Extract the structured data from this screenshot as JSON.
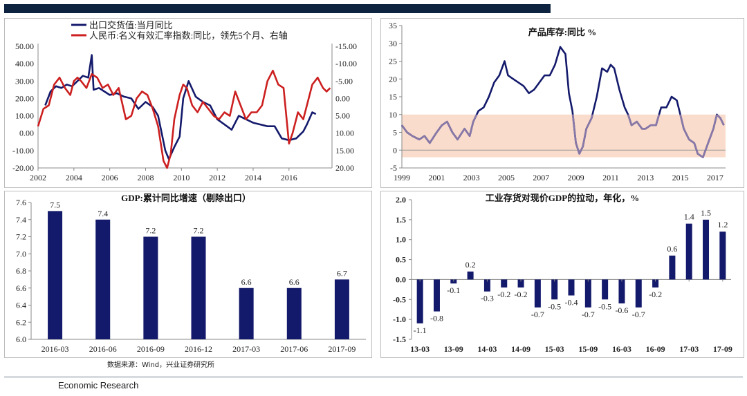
{
  "footer": {
    "source": "数据来源：Wind，兴业证券研究所",
    "brand": "Economic Research"
  },
  "colors": {
    "navy": "#141a6b",
    "red": "#cc1f1f",
    "band": "#f9dccb",
    "purple": "#8878a8"
  },
  "chart_data": [
    {
      "type": "line",
      "legend": [
        "出口交货值:当月同比",
        "人民币:名义有效汇率指数:同比，领先5个月、右轴"
      ],
      "x_ticks": [
        "2002",
        "2004",
        "2006",
        "2008",
        "2010",
        "2012",
        "2014",
        "2016"
      ],
      "y_left_ticks": [
        "50.00",
        "40.00",
        "30.00",
        "20.00",
        "10.00",
        "0.00",
        "-10.00",
        "-20.00"
      ],
      "y_left_lim": [
        -20,
        50
      ],
      "y_right_ticks": [
        "-15.00",
        "-10.00",
        "-5.00",
        "0.00",
        "5.00",
        "10.00",
        "15.00",
        "20.00"
      ],
      "y_right_lim": [
        -15,
        20
      ],
      "x_lim": [
        2002,
        2018.4
      ],
      "series": [
        {
          "name": "出口交货值:当月同比",
          "axis": "left",
          "color": "#141a6b",
          "x": [
            2002.4,
            2002.7,
            2003.0,
            2003.3,
            2003.6,
            2003.9,
            2004.2,
            2004.5,
            2004.8,
            2005.0,
            2005.1,
            2005.4,
            2005.7,
            2006.0,
            2006.4,
            2006.8,
            2007.2,
            2007.6,
            2008.0,
            2008.4,
            2008.7,
            2008.9,
            2009.1,
            2009.3,
            2009.6,
            2009.9,
            2010.1,
            2010.4,
            2010.8,
            2011.2,
            2011.6,
            2012.0,
            2012.4,
            2012.8,
            2013.2,
            2013.6,
            2014.0,
            2014.4,
            2014.8,
            2015.2,
            2015.6,
            2016.0,
            2016.4,
            2016.8,
            2017.0,
            2017.3,
            2017.5
          ],
          "y": [
            16,
            24,
            27,
            26,
            28,
            27,
            30,
            33,
            32,
            45,
            25,
            26,
            24,
            22,
            23,
            21,
            20,
            14,
            18,
            15,
            10,
            0,
            -10,
            -15,
            -8,
            -2,
            20,
            30,
            21,
            18,
            16,
            8,
            5,
            2,
            10,
            8,
            6,
            5,
            4,
            4,
            -3,
            -4,
            -3,
            1,
            5,
            12,
            11
          ]
        },
        {
          "name": "人民币:名义有效汇率指数:同比，领先5个月、右轴",
          "axis": "right",
          "color": "#cc1f1f",
          "x": [
            2002.0,
            2002.3,
            2002.6,
            2002.9,
            2003.2,
            2003.5,
            2003.8,
            2004.0,
            2004.2,
            2004.4,
            2004.7,
            2005.0,
            2005.3,
            2005.6,
            2005.9,
            2006.2,
            2006.5,
            2006.9,
            2007.2,
            2007.5,
            2007.8,
            2008.1,
            2008.4,
            2008.7,
            2009.0,
            2009.2,
            2009.4,
            2009.6,
            2009.9,
            2010.1,
            2010.3,
            2010.6,
            2010.9,
            2011.2,
            2011.5,
            2011.8,
            2012.1,
            2012.4,
            2012.7,
            2013.0,
            2013.3,
            2013.6,
            2013.9,
            2014.2,
            2014.5,
            2014.8,
            2015.1,
            2015.4,
            2015.7,
            2016.0,
            2016.2,
            2016.5,
            2016.8,
            2017.1,
            2017.3,
            2017.6,
            2017.9,
            2018.1,
            2018.3
          ],
          "y": [
            8,
            3,
            2,
            -4,
            -6,
            -3,
            -1,
            -5,
            -6,
            -5,
            -3,
            -7,
            -6,
            -3,
            -4,
            -1,
            -3,
            6,
            5,
            0,
            -2,
            -1,
            3,
            8,
            18,
            20,
            16,
            6,
            -1,
            -4,
            -3,
            2,
            4,
            1,
            3,
            5,
            6,
            4,
            5,
            -2,
            2,
            6,
            4,
            4,
            2,
            -5,
            -8,
            -4,
            -3,
            13,
            10,
            4,
            6,
            0,
            -4,
            -6,
            -3,
            -2,
            -3
          ]
        }
      ]
    },
    {
      "type": "line",
      "title": "产品库存:同比 %",
      "x_ticks": [
        "1999",
        "2001",
        "2003",
        "2005",
        "2007",
        "2009",
        "2011",
        "2013",
        "2015",
        "2017"
      ],
      "y_ticks": [
        "35",
        "30",
        "25",
        "20",
        "15",
        "10",
        "5",
        "0",
        "-5"
      ],
      "ylim": [
        -5,
        35
      ],
      "x_lim": [
        1999,
        2017.6
      ],
      "band": [
        -2,
        10
      ],
      "series": [
        {
          "name": "产品库存:同比",
          "color": "#141a6b",
          "x": [
            1999.0,
            1999.3,
            1999.6,
            2000.0,
            2000.3,
            2000.6,
            2001.0,
            2001.3,
            2001.6,
            2001.9,
            2002.2,
            2002.6,
            2002.9,
            2003.1,
            2003.4,
            2003.7,
            2004.0,
            2004.3,
            2004.6,
            2004.9,
            2005.1,
            2005.4,
            2005.7,
            2006.0,
            2006.3,
            2006.6,
            2006.9,
            2007.2,
            2007.5,
            2007.8,
            2008.1,
            2008.4,
            2008.6,
            2008.8,
            2009.0,
            2009.2,
            2009.4,
            2009.6,
            2009.9,
            2010.2,
            2010.5,
            2010.8,
            2011.0,
            2011.2,
            2011.5,
            2011.8,
            2012.0,
            2012.2,
            2012.5,
            2012.8,
            2013.0,
            2013.3,
            2013.6,
            2013.9,
            2014.2,
            2014.5,
            2014.8,
            2015.0,
            2015.2,
            2015.5,
            2015.8,
            2016.0,
            2016.3,
            2016.6,
            2016.9,
            2017.1,
            2017.3,
            2017.5
          ],
          "y": [
            7,
            5,
            4,
            3,
            4,
            2,
            5,
            7,
            8,
            5,
            3,
            6,
            4,
            8,
            11,
            12,
            15,
            19,
            21,
            25,
            21,
            20,
            19,
            18,
            16,
            17,
            19,
            21,
            21,
            24,
            29,
            27,
            16,
            11,
            2,
            -1,
            1,
            6,
            9,
            15,
            23,
            22,
            24,
            23,
            17,
            12,
            10,
            7,
            8,
            6,
            6,
            7,
            7,
            12,
            12,
            15,
            14,
            10,
            6,
            3,
            2,
            -1,
            -2,
            2,
            6,
            10,
            9,
            7
          ]
        }
      ]
    },
    {
      "type": "bar",
      "title": "GDP:累计同比增速（剔除出口）",
      "categories": [
        "2016-03",
        "2016-06",
        "2016-09",
        "2016-12",
        "2017-03",
        "2017-06",
        "2017-09"
      ],
      "values": [
        7.5,
        7.4,
        7.2,
        7.2,
        6.6,
        6.6,
        6.7
      ],
      "y_ticks": [
        "7.6",
        "7.4",
        "7.2",
        "7.0",
        "6.8",
        "6.6",
        "6.4",
        "6.2",
        "6.0"
      ],
      "ylim": [
        6.0,
        7.6
      ]
    },
    {
      "type": "bar",
      "title": "工业存货对现价GDP的拉动，年化，%",
      "categories": [
        "13-03",
        "13-06",
        "13-09",
        "13-12",
        "14-03",
        "14-06",
        "14-09",
        "14-12",
        "15-03",
        "15-06",
        "15-09",
        "15-12",
        "16-03",
        "16-06",
        "16-09",
        "16-12",
        "17-03",
        "17-06",
        "17-09"
      ],
      "x_tick_labels": [
        "13-03",
        "13-09",
        "14-03",
        "14-09",
        "15-03",
        "15-09",
        "16-03",
        "16-09",
        "17-03",
        "17-09"
      ],
      "values": [
        -1.1,
        -0.8,
        -0.1,
        0.2,
        -0.3,
        -0.2,
        -0.2,
        -0.7,
        -0.5,
        -0.4,
        -0.7,
        -0.5,
        -0.6,
        -0.7,
        -0.2,
        0.6,
        1.4,
        1.5,
        1.2
      ],
      "y_ticks": [
        "2.0",
        "1.5",
        "1.0",
        "0.5",
        "0.0",
        "-0.5",
        "-1.0",
        "-1.5"
      ],
      "ylim": [
        -1.5,
        2.0
      ]
    }
  ]
}
